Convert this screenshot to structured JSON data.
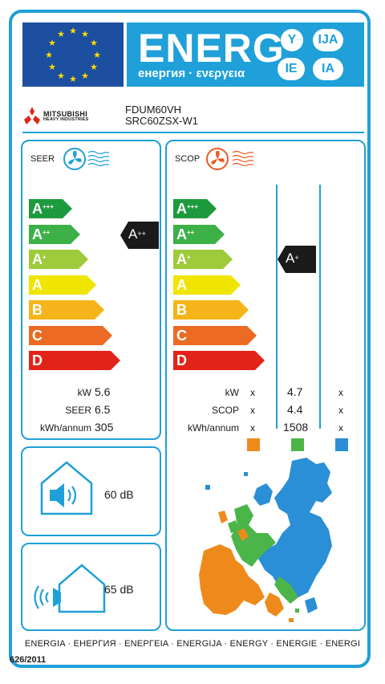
{
  "header": {
    "energy_word": "ENERG",
    "subtitle": "енергия · ενεργεια",
    "language_codes": [
      "Y",
      "IJA",
      "IE",
      "IA"
    ]
  },
  "product": {
    "manufacturer_line1": "MITSUBISHI",
    "manufacturer_line2": "HEAVY INDUSTRIES",
    "model_indoor": "FDUM60VH",
    "model_outdoor": "SRC60ZSX-W1"
  },
  "scale": {
    "classes": [
      {
        "letter": "A",
        "sup": "+++",
        "color": "#1e9a3e"
      },
      {
        "letter": "A",
        "sup": "++",
        "color": "#3db048"
      },
      {
        "letter": "A",
        "sup": "+",
        "color": "#9dcb3b"
      },
      {
        "letter": "A",
        "sup": "",
        "color": "#f0e500"
      },
      {
        "letter": "B",
        "sup": "",
        "color": "#f5b51a"
      },
      {
        "letter": "C",
        "sup": "",
        "color": "#ec6a23"
      },
      {
        "letter": "D",
        "sup": "",
        "color": "#e2231a"
      }
    ]
  },
  "cooling": {
    "title": "SEER",
    "rating_letter": "A",
    "rating_sup": "++",
    "rows": [
      {
        "label": "kW",
        "value": "5.6"
      },
      {
        "label": "SEER",
        "value": "6.5"
      },
      {
        "label": "kWh/annum",
        "value": "305"
      }
    ]
  },
  "heating": {
    "title": "SCOP",
    "rating_letter": "A",
    "rating_sup": "+",
    "rows": [
      {
        "label": "kW",
        "cols": [
          "x",
          "4.7",
          "x"
        ]
      },
      {
        "label": "SCOP",
        "cols": [
          "x",
          "4.4",
          "x"
        ]
      },
      {
        "label": "kWh/annum",
        "cols": [
          "x",
          "1508",
          "x"
        ]
      }
    ],
    "zone_colors": [
      "#ee8a1c",
      "#4bb54a",
      "#2a8fd6"
    ]
  },
  "noise": {
    "indoor": "60 dB",
    "outdoor": "65 dB"
  },
  "footer": {
    "languages": "ENERGIA · ЕНЕРГИЯ · ΕΝΕΡΓΕΙΑ · ENERGIJA · ENERGY · ENERGIE · ENERGI",
    "regulation": "626/2011"
  },
  "colors": {
    "border": "#1fa0d8",
    "eu_blue": "#1c4fa0",
    "eu_star": "#ffdd00",
    "marker": "#1a1a1a"
  },
  "icons": [
    "eu-flag-icon",
    "mitsubishi-logo-icon",
    "cooling-fan-icon",
    "heating-fan-icon",
    "indoor-speaker-icon",
    "outdoor-speaker-icon",
    "europe-map-icon"
  ]
}
